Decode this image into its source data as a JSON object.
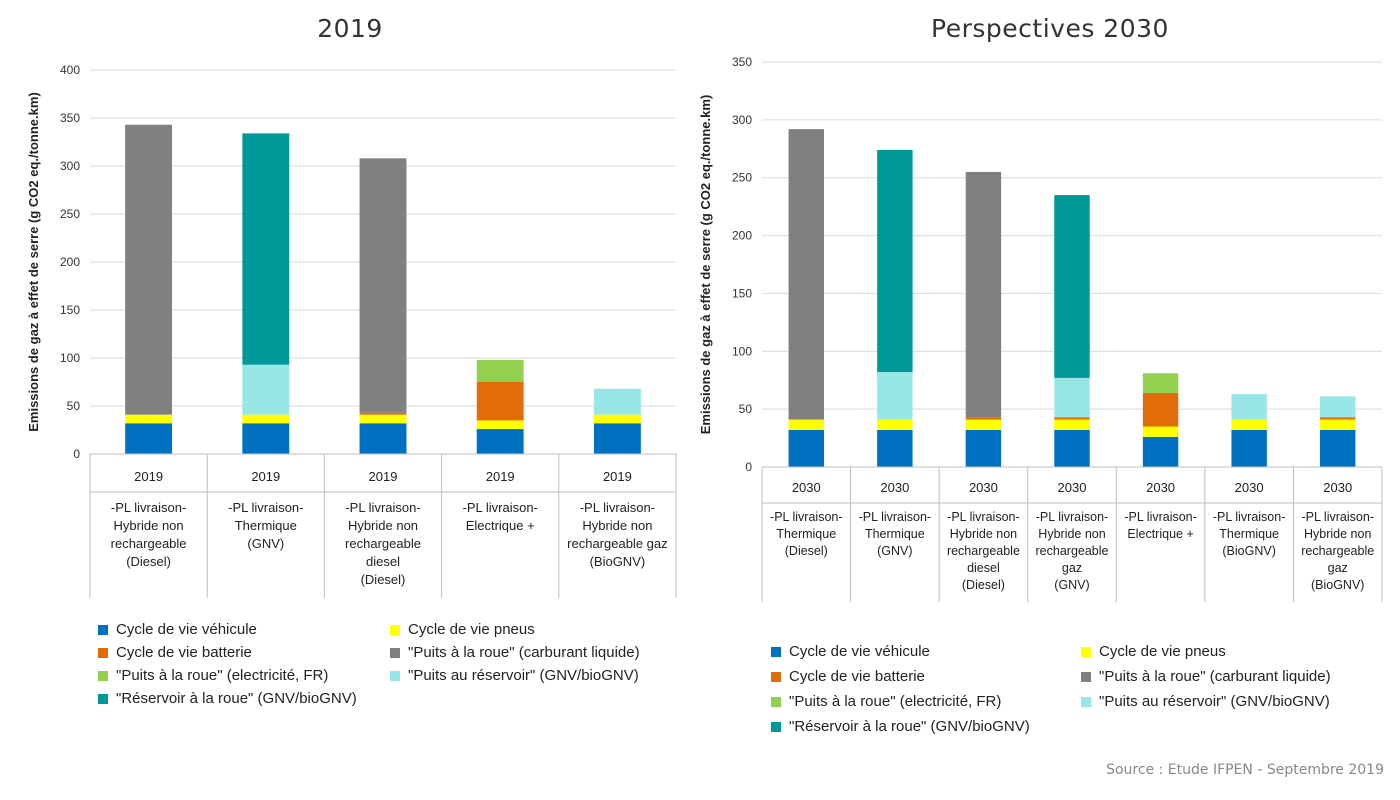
{
  "source": "Source : Etude IFPEN - Septembre 2019",
  "legend_items": [
    {
      "name": "Cycle de vie véhicule",
      "color": "#0070c0"
    },
    {
      "name": "Cycle de vie pneus",
      "color": "#ffff00"
    },
    {
      "name": "Cycle de vie batterie",
      "color": "#e36c0a"
    },
    {
      "name": "\"Puits à la roue\" (carburant liquide)",
      "color": "#808080"
    },
    {
      "name": "\"Puits à la roue\" (electricité, FR)",
      "color": "#92d050"
    },
    {
      "name": "\"Puits au réservoir\" (GNV/bioGNV)",
      "color": "#99e6e6"
    },
    {
      "name": "\"Réservoir à la roue\" (GNV/bioGNV)",
      "color": "#009999"
    }
  ],
  "chart_data": [
    {
      "type": "bar",
      "stacked": true,
      "title": "2019",
      "ylabel": "Emissions de gaz à effet de serre (g CO2 eq./tonne.km)",
      "ylim": [
        0,
        400
      ],
      "yticks": [
        0,
        50,
        100,
        150,
        200,
        250,
        300,
        350,
        400
      ],
      "grid": true,
      "legend": "bottom",
      "categories": [
        [
          "2019",
          "-PL livraison-",
          "Hybride non",
          "rechargeable",
          "(Diesel)"
        ],
        [
          "2019",
          "-PL livraison-",
          "Thermique",
          "(GNV)"
        ],
        [
          "2019",
          "-PL livraison-",
          "Hybride non",
          "rechargeable",
          "diesel",
          "(Diesel)"
        ],
        [
          "2019",
          "-PL livraison-",
          "Electrique +"
        ],
        [
          "2019",
          "-PL livraison-",
          "Hybride non",
          "rechargeable gaz",
          "(BioGNV)"
        ]
      ],
      "series": [
        {
          "name": "Cycle de vie véhicule",
          "values": [
            32,
            32,
            32,
            26,
            32
          ]
        },
        {
          "name": "Cycle de vie pneus",
          "values": [
            9,
            9,
            9,
            9,
            9
          ]
        },
        {
          "name": "Cycle de vie batterie",
          "values": [
            0,
            0,
            2,
            40,
            0
          ]
        },
        {
          "name": "\"Puits à la roue\" (carburant liquide)",
          "values": [
            302,
            0,
            265,
            0,
            0
          ]
        },
        {
          "name": "\"Puits à la roue\" (electricité, FR)",
          "values": [
            0,
            0,
            0,
            23,
            0
          ]
        },
        {
          "name": "\"Puits au réservoir\" (GNV/bioGNV)",
          "values": [
            0,
            52,
            0,
            0,
            27
          ]
        },
        {
          "name": "\"Réservoir à la roue\" (GNV/bioGNV)",
          "values": [
            0,
            241,
            0,
            0,
            0
          ]
        }
      ]
    },
    {
      "type": "bar",
      "stacked": true,
      "title": "Perspectives 2030",
      "ylabel": "Emissions de gaz à effet de serre (g CO2 eq./tonne.km)",
      "ylim": [
        0,
        350
      ],
      "yticks": [
        0,
        50,
        100,
        150,
        200,
        250,
        300,
        350
      ],
      "grid": true,
      "legend": "bottom",
      "categories": [
        [
          "2030",
          "-PL livraison-",
          "Thermique",
          "(Diesel)"
        ],
        [
          "2030",
          "-PL livraison-",
          "Thermique",
          "(GNV)"
        ],
        [
          "2030",
          "-PL livraison-",
          "Hybride non",
          "rechargeable",
          "diesel",
          "(Diesel)"
        ],
        [
          "2030",
          "-PL livraison-",
          "Hybride non",
          "rechargeable",
          "gaz",
          "(GNV)"
        ],
        [
          "2030",
          "-PL livraison-",
          "Electrique +"
        ],
        [
          "2030",
          "-PL livraison-",
          "Thermique",
          "(BioGNV)"
        ],
        [
          "2030",
          "-PL livraison-",
          "Hybride non",
          "rechargeable",
          "gaz",
          "(BioGNV)"
        ]
      ],
      "series": [
        {
          "name": "Cycle de vie véhicule",
          "values": [
            32,
            32,
            32,
            32,
            26,
            32,
            32
          ]
        },
        {
          "name": "Cycle de vie pneus",
          "values": [
            9,
            9,
            9,
            9,
            9,
            9,
            9
          ]
        },
        {
          "name": "Cycle de vie batterie",
          "values": [
            0,
            0,
            2,
            2,
            29,
            0,
            2
          ]
        },
        {
          "name": "\"Puits à la roue\" (carburant liquide)",
          "values": [
            251,
            0,
            212,
            0,
            0,
            0,
            0
          ]
        },
        {
          "name": "\"Puits à la roue\" (electricité, FR)",
          "values": [
            0,
            0,
            0,
            0,
            17,
            0,
            0
          ]
        },
        {
          "name": "\"Puits au réservoir\" (GNV/bioGNV)",
          "values": [
            0,
            41,
            0,
            34,
            0,
            22,
            18
          ]
        },
        {
          "name": "\"Réservoir à la roue\" (GNV/bioGNV)",
          "values": [
            0,
            192,
            0,
            158,
            0,
            0,
            0
          ]
        }
      ]
    }
  ]
}
